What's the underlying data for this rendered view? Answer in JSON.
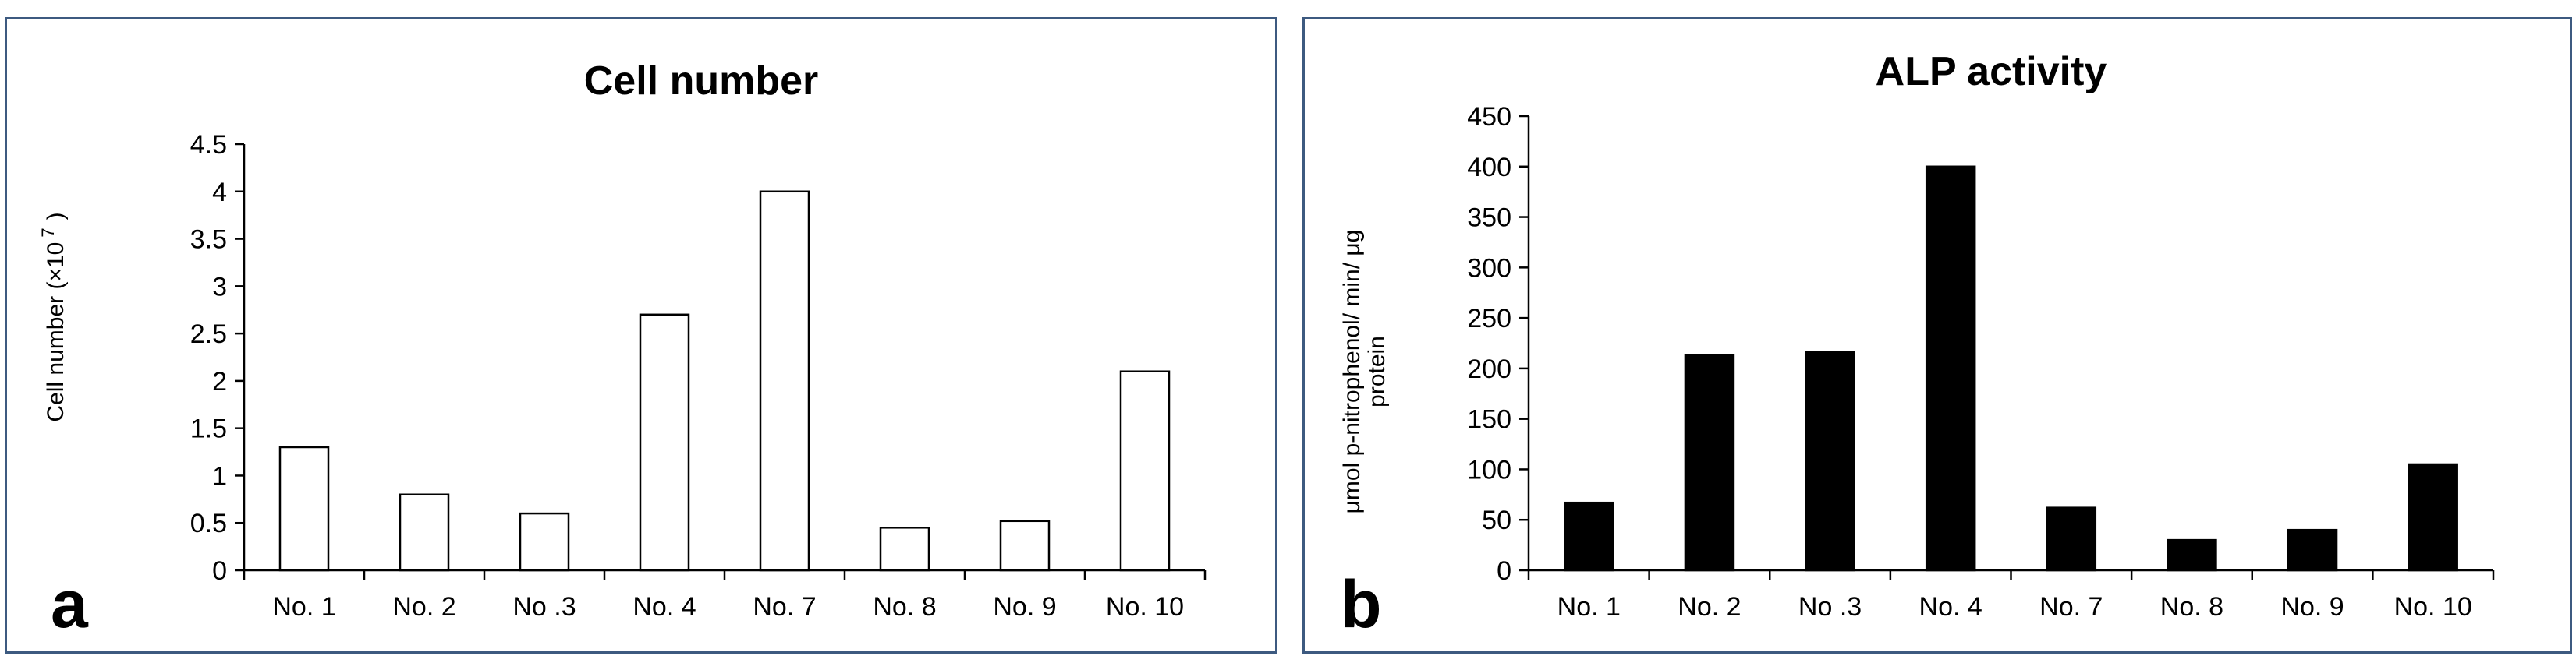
{
  "panels": [
    {
      "letter": "a",
      "title": "Cell number",
      "ylabel": "Cell number (×10",
      "ylabel_sup": "7",
      "ylabel_close": ")",
      "colors": {
        "bar_fill": "#ffffff",
        "bar_stroke": "#000000"
      }
    },
    {
      "letter": "b",
      "title": "ALP activity",
      "ylabel_line1": "μmol p-nitrophenol/ min/ μg",
      "ylabel_line2": "protein",
      "colors": {
        "bar_fill": "#000000",
        "bar_stroke": "#000000"
      }
    }
  ],
  "chart_data": [
    {
      "type": "bar",
      "title": "Cell number",
      "xlabel": "",
      "ylabel": "Cell number (×10 7 )",
      "categories": [
        "No. 1",
        "No. 2",
        "No .3",
        "No. 4",
        "No. 7",
        "No. 8",
        "No. 9",
        "No. 10"
      ],
      "values": [
        1.3,
        0.8,
        0.6,
        2.7,
        4.0,
        0.45,
        0.52,
        2.1
      ],
      "ylim": [
        0,
        4.5
      ],
      "yticks": [
        "0",
        "0.5",
        "1",
        "1.5",
        "2",
        "2.5",
        "3",
        "3.5",
        "4",
        "4.5"
      ],
      "ytick_values": [
        0,
        0.5,
        1,
        1.5,
        2,
        2.5,
        3,
        3.5,
        4,
        4.5
      ],
      "grid": false,
      "legend": "none"
    },
    {
      "type": "bar",
      "title": "ALP activity",
      "xlabel": "",
      "ylabel": "μmol p-nitrophenol/ min/ μg protein",
      "categories": [
        "No. 1",
        "No. 2",
        "No .3",
        "No. 4",
        "No. 7",
        "No. 8",
        "No. 9",
        "No. 10"
      ],
      "values": [
        67,
        213,
        216,
        400,
        62,
        30,
        40,
        105
      ],
      "ylim": [
        0,
        450
      ],
      "yticks": [
        "0",
        "50",
        "100",
        "150",
        "200",
        "250",
        "300",
        "350",
        "400",
        "450"
      ],
      "ytick_values": [
        0,
        50,
        100,
        150,
        200,
        250,
        300,
        350,
        400,
        450
      ],
      "grid": false,
      "legend": "none"
    }
  ]
}
